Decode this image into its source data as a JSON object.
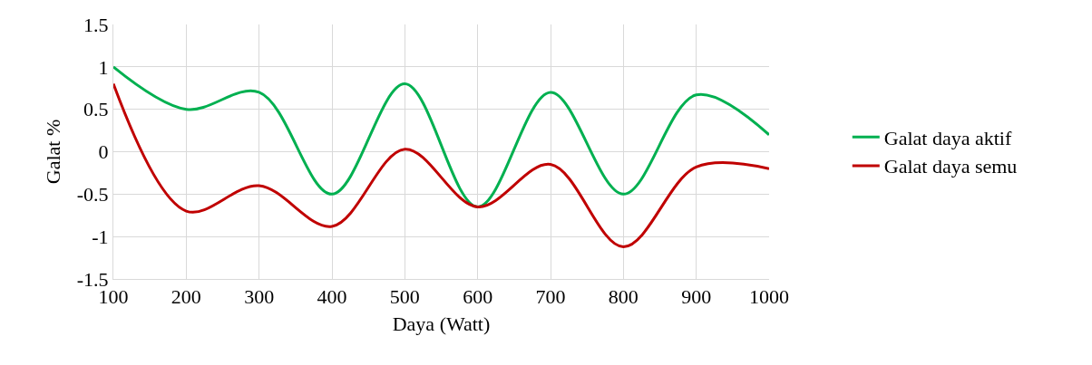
{
  "chart_data": {
    "type": "line",
    "xlabel": "Daya (Watt)",
    "ylabel": "Galat %",
    "x": [
      100,
      200,
      300,
      400,
      500,
      600,
      700,
      800,
      900,
      1000
    ],
    "series": [
      {
        "name": "Galat daya aktif",
        "color": "#00b050",
        "values": [
          1,
          0.5,
          0.7,
          -0.5,
          0.8,
          -0.65,
          0.7,
          -0.5,
          0.67,
          0.2
        ]
      },
      {
        "name": "Galat daya semu",
        "color": "#c00000",
        "values": [
          0.8,
          -0.7,
          -0.4,
          -0.88,
          0.03,
          -0.65,
          -0.15,
          -1.12,
          -0.18,
          -0.2
        ]
      }
    ],
    "xlim": [
      100,
      1000
    ],
    "xticks": [
      100,
      200,
      300,
      400,
      500,
      600,
      700,
      800,
      900,
      1000
    ],
    "ylim": [
      -1.5,
      1.5
    ],
    "yticks": [
      -1.5,
      -1,
      -0.5,
      0,
      0.5,
      1,
      1.5
    ],
    "grid": true,
    "legend": "right",
    "marker": "none",
    "line_style": "solid"
  }
}
